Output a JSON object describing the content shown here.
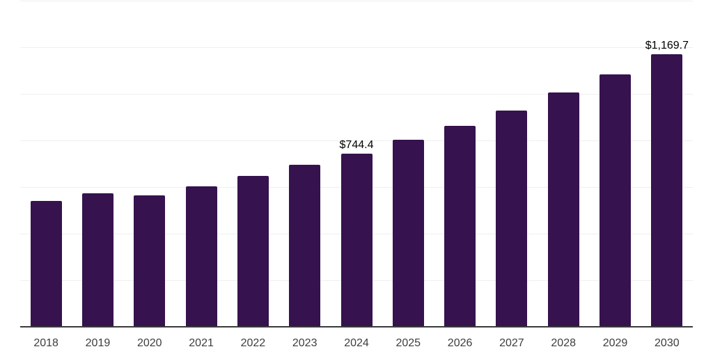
{
  "chart_data": {
    "type": "bar",
    "title": "",
    "xlabel": "",
    "ylabel": "",
    "categories": [
      "2018",
      "2019",
      "2020",
      "2021",
      "2022",
      "2023",
      "2024",
      "2025",
      "2026",
      "2027",
      "2028",
      "2029",
      "2030"
    ],
    "values": [
      540,
      573,
      565,
      604,
      648,
      696,
      744.4,
      804,
      864,
      929,
      1005,
      1084,
      1169.7
    ],
    "data_labels": [
      "",
      "",
      "",
      "",
      "",
      "",
      "$744.4",
      "",
      "",
      "",
      "",
      "",
      "$1,169.7"
    ],
    "ylim": [
      0,
      1400
    ],
    "gridline_step": 200,
    "grid": "horizontal",
    "y_tick_labels_shown": false,
    "legend": "none",
    "colors": {
      "bar": "#36124e",
      "axis_line": "#3a3a3a",
      "gridline": "#efefef",
      "tick_label": "#3d3d3d",
      "data_label": "#000000",
      "background": "#ffffff"
    }
  }
}
